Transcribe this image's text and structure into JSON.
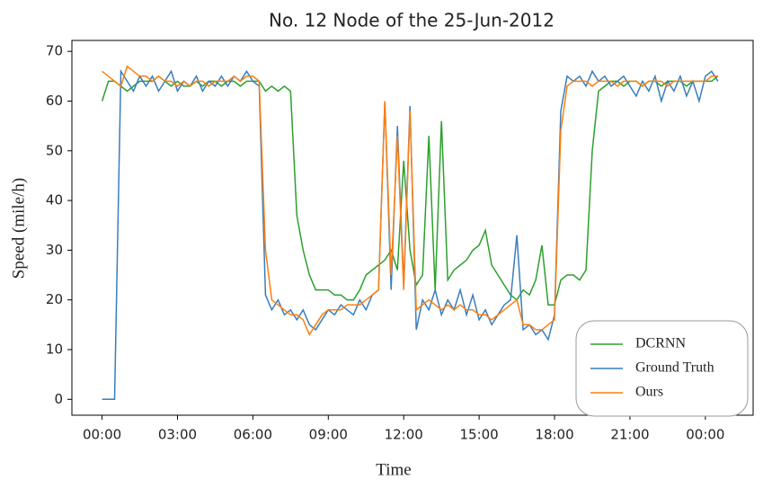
{
  "chart_data": {
    "type": "line",
    "title": "No. 12 Node of the 25-Jun-2012",
    "x_label": "Time",
    "y_label": "Speed (mile/h)",
    "x": [
      0,
      0.25,
      0.5,
      0.75,
      1,
      1.25,
      1.5,
      1.75,
      2,
      2.25,
      2.5,
      2.75,
      3,
      3.25,
      3.5,
      3.75,
      4,
      4.25,
      4.5,
      4.75,
      5,
      5.25,
      5.5,
      5.75,
      6,
      6.25,
      6.5,
      6.75,
      7,
      7.25,
      7.5,
      7.75,
      8,
      8.25,
      8.5,
      8.75,
      9,
      9.25,
      9.5,
      9.75,
      10,
      10.25,
      10.5,
      10.75,
      11,
      11.25,
      11.5,
      11.75,
      12,
      12.25,
      12.5,
      12.75,
      13,
      13.25,
      13.5,
      13.75,
      14,
      14.25,
      14.5,
      14.75,
      15,
      15.25,
      15.5,
      15.75,
      16,
      16.25,
      16.5,
      16.75,
      17,
      17.25,
      17.5,
      17.75,
      18,
      18.25,
      18.5,
      18.75,
      19,
      19.25,
      19.5,
      19.75,
      20,
      20.25,
      20.5,
      20.75,
      21,
      21.25,
      21.5,
      21.75,
      22,
      22.25,
      22.5,
      22.75,
      23,
      23.25,
      23.5,
      23.75,
      24,
      24.25,
      24.5
    ],
    "series": [
      {
        "name": "DCRNN",
        "color": "#2ca02c",
        "values": [
          60,
          64,
          64,
          63,
          62,
          63,
          64,
          64,
          64,
          65,
          64,
          63,
          64,
          63,
          63,
          64,
          63,
          64,
          64,
          63,
          64,
          64,
          63,
          64,
          64,
          64,
          62,
          63,
          62,
          63,
          62,
          37,
          30,
          25,
          22,
          22,
          22,
          21,
          21,
          20,
          20,
          22,
          25,
          26,
          27,
          28,
          30,
          26,
          48,
          30,
          23,
          25,
          53,
          22,
          56,
          24,
          26,
          27,
          28,
          30,
          31,
          34,
          27,
          25,
          23,
          21,
          20,
          22,
          21,
          24,
          31,
          19,
          19,
          24,
          25,
          25,
          24,
          26,
          50,
          62,
          63,
          64,
          64,
          63,
          64,
          64,
          63,
          64,
          64,
          63,
          64,
          64,
          64,
          63,
          64,
          64,
          64,
          64,
          65
        ]
      },
      {
        "name": "Ground Truth",
        "color": "#3a7dbd",
        "values": [
          0,
          0,
          0,
          66,
          64,
          62,
          65,
          63,
          65,
          62,
          64,
          66,
          62,
          64,
          63,
          65,
          62,
          64,
          63,
          65,
          63,
          65,
          64,
          66,
          64,
          63,
          21,
          18,
          20,
          17,
          18,
          16,
          18,
          15,
          14,
          16,
          18,
          17,
          19,
          18,
          17,
          20,
          18,
          21,
          22,
          60,
          22,
          55,
          23,
          59,
          14,
          20,
          18,
          22,
          17,
          20,
          18,
          22,
          17,
          21,
          16,
          18,
          15,
          17,
          19,
          20,
          33,
          14,
          15,
          13,
          14,
          12,
          17,
          58,
          65,
          64,
          65,
          63,
          66,
          64,
          65,
          63,
          64,
          65,
          63,
          61,
          64,
          62,
          65,
          60,
          64,
          62,
          65,
          61,
          64,
          60,
          65,
          66,
          64
        ]
      },
      {
        "name": "Ours",
        "color": "#ff7f0e",
        "values": [
          66,
          65,
          64,
          63,
          67,
          66,
          65,
          65,
          64,
          65,
          64,
          64,
          63,
          64,
          63,
          64,
          64,
          63,
          64,
          64,
          64,
          65,
          64,
          65,
          65,
          64,
          30,
          20,
          19,
          18,
          17,
          17,
          16,
          13,
          15,
          17,
          18,
          18,
          18,
          19,
          19,
          19,
          20,
          21,
          22,
          60,
          25,
          53,
          22,
          58,
          18,
          19,
          20,
          19,
          18,
          19,
          18,
          19,
          18,
          18,
          17,
          17,
          16,
          17,
          18,
          19,
          20,
          15,
          15,
          14,
          14,
          15,
          16,
          54,
          63,
          64,
          64,
          64,
          63,
          64,
          64,
          64,
          63,
          64,
          64,
          64,
          63,
          64,
          64,
          64,
          63,
          64,
          64,
          64,
          64,
          64,
          64,
          65,
          65
        ]
      }
    ],
    "xlim": [
      -1.2,
      25.9
    ],
    "xticks": [
      {
        "value": 0,
        "label": "00:00"
      },
      {
        "value": 3,
        "label": "03:00"
      },
      {
        "value": 6,
        "label": "06:00"
      },
      {
        "value": 9,
        "label": "09:00"
      },
      {
        "value": 12,
        "label": "12:00"
      },
      {
        "value": 15,
        "label": "15:00"
      },
      {
        "value": 18,
        "label": "18:00"
      },
      {
        "value": 21,
        "label": "21:00"
      },
      {
        "value": 24,
        "label": "00:00"
      }
    ],
    "ylim": [
      -3.2,
      72.2
    ],
    "yticks": [
      0,
      10,
      20,
      30,
      40,
      50,
      60,
      70
    ],
    "grid": false,
    "legend": "lower right"
  }
}
